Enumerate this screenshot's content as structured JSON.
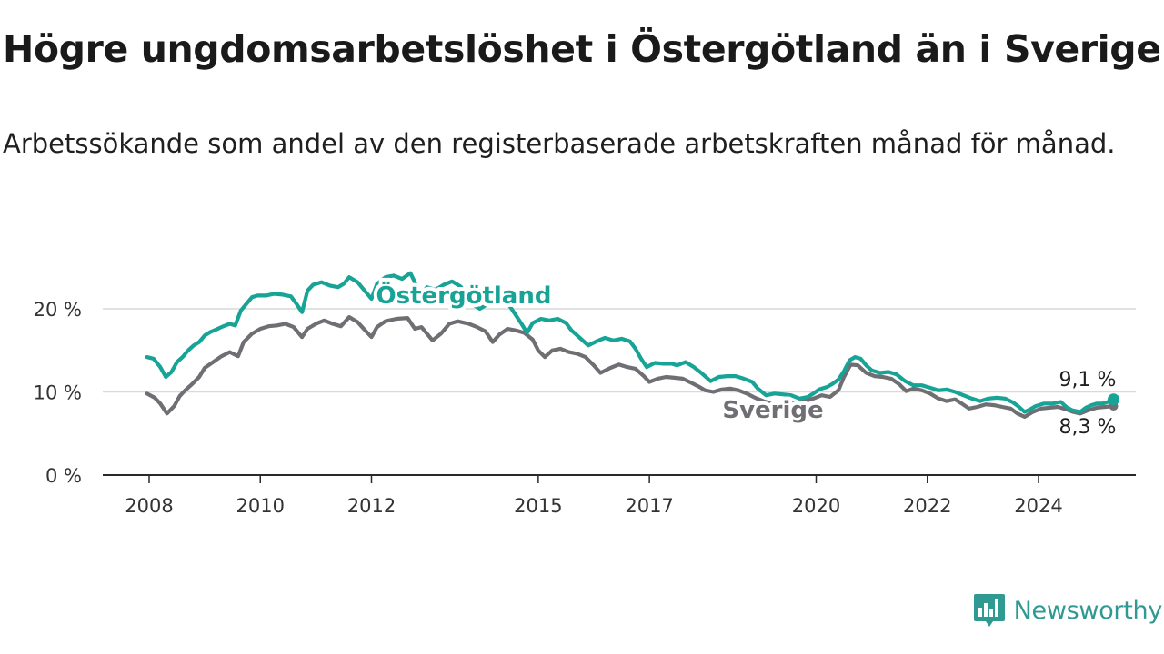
{
  "title": "Högre ungdomsarbetslöshet i Östergötland än i Sverige",
  "subtitle": "Arbetssökande som andel av den registerbaserade arbetskraften månad för månad.",
  "brand": "Newsworthy",
  "colors": {
    "ostergotland": "#17a396",
    "sverige": "#6f6e73",
    "grid": "#d9d9d9",
    "axis": "#2a2a2a",
    "brand": "#2f9a92"
  },
  "chart_data": {
    "type": "line",
    "ylim": [
      0,
      25
    ],
    "yticks": [
      {
        "value": 0,
        "label": "0 %"
      },
      {
        "value": 10,
        "label": "10 %"
      },
      {
        "value": 20,
        "label": "20 %"
      }
    ],
    "xlim": [
      2007.8,
      2026.5
    ],
    "xticks": [
      {
        "value": 2008,
        "label": "2008"
      },
      {
        "value": 2010,
        "label": "2010"
      },
      {
        "value": 2012,
        "label": "2012"
      },
      {
        "value": 2015,
        "label": "2015"
      },
      {
        "value": 2017,
        "label": "2017"
      },
      {
        "value": 2020,
        "label": "2020"
      },
      {
        "value": 2022,
        "label": "2022"
      },
      {
        "value": 2024,
        "label": "2024"
      }
    ],
    "grid": true,
    "series": [
      {
        "name": "Östergötland",
        "color": "#17a396",
        "end_label": "9,1 %",
        "points": [
          [
            2007.96,
            14.2
          ],
          [
            2008.08,
            14.0
          ],
          [
            2008.2,
            13.0
          ],
          [
            2008.3,
            11.8
          ],
          [
            2008.4,
            12.4
          ],
          [
            2008.5,
            13.6
          ],
          [
            2008.6,
            14.2
          ],
          [
            2008.7,
            15.0
          ],
          [
            2008.8,
            15.6
          ],
          [
            2008.9,
            16.0
          ],
          [
            2009.0,
            16.8
          ],
          [
            2009.1,
            17.2
          ],
          [
            2009.2,
            17.5
          ],
          [
            2009.3,
            17.8
          ],
          [
            2009.45,
            18.2
          ],
          [
            2009.55,
            18.0
          ],
          [
            2009.65,
            19.8
          ],
          [
            2009.75,
            20.6
          ],
          [
            2009.85,
            21.4
          ],
          [
            2009.95,
            21.6
          ],
          [
            2010.1,
            21.6
          ],
          [
            2010.25,
            21.8
          ],
          [
            2010.4,
            21.7
          ],
          [
            2010.55,
            21.5
          ],
          [
            2010.65,
            20.6
          ],
          [
            2010.75,
            19.6
          ],
          [
            2010.85,
            22.2
          ],
          [
            2010.95,
            22.9
          ],
          [
            2011.1,
            23.2
          ],
          [
            2011.25,
            22.8
          ],
          [
            2011.4,
            22.6
          ],
          [
            2011.5,
            23.0
          ],
          [
            2011.6,
            23.8
          ],
          [
            2011.75,
            23.2
          ],
          [
            2011.9,
            22.0
          ],
          [
            2012.0,
            21.2
          ],
          [
            2012.1,
            23.0
          ],
          [
            2012.25,
            23.8
          ],
          [
            2012.4,
            24.0
          ],
          [
            2012.55,
            23.6
          ],
          [
            2012.7,
            24.3
          ],
          [
            2012.78,
            23.2
          ],
          [
            2012.88,
            21.6
          ],
          [
            2013.0,
            22.6
          ],
          [
            2013.15,
            22.3
          ],
          [
            2013.3,
            22.9
          ],
          [
            2013.45,
            23.3
          ],
          [
            2013.6,
            22.7
          ],
          [
            2013.75,
            21.5
          ],
          [
            2013.85,
            20.4
          ],
          [
            2013.95,
            20.0
          ],
          [
            2014.1,
            20.6
          ],
          [
            2014.25,
            21.3
          ],
          [
            2014.4,
            21.0
          ],
          [
            2014.5,
            20.2
          ],
          [
            2014.6,
            19.2
          ],
          [
            2014.7,
            18.2
          ],
          [
            2014.8,
            17.1
          ],
          [
            2014.9,
            18.3
          ],
          [
            2015.05,
            18.8
          ],
          [
            2015.2,
            18.6
          ],
          [
            2015.35,
            18.8
          ],
          [
            2015.5,
            18.3
          ],
          [
            2015.6,
            17.4
          ],
          [
            2015.75,
            16.5
          ],
          [
            2015.9,
            15.6
          ],
          [
            2016.05,
            16.1
          ],
          [
            2016.2,
            16.5
          ],
          [
            2016.35,
            16.2
          ],
          [
            2016.5,
            16.4
          ],
          [
            2016.65,
            16.1
          ],
          [
            2016.75,
            15.2
          ],
          [
            2016.85,
            14.0
          ],
          [
            2016.95,
            13.0
          ],
          [
            2017.1,
            13.5
          ],
          [
            2017.25,
            13.4
          ],
          [
            2017.4,
            13.4
          ],
          [
            2017.5,
            13.2
          ],
          [
            2017.65,
            13.6
          ],
          [
            2017.8,
            13.0
          ],
          [
            2017.95,
            12.2
          ],
          [
            2018.1,
            11.3
          ],
          [
            2018.25,
            11.8
          ],
          [
            2018.4,
            11.9
          ],
          [
            2018.55,
            11.9
          ],
          [
            2018.7,
            11.6
          ],
          [
            2018.85,
            11.2
          ],
          [
            2018.95,
            10.4
          ],
          [
            2019.1,
            9.6
          ],
          [
            2019.25,
            9.8
          ],
          [
            2019.4,
            9.7
          ],
          [
            2019.55,
            9.6
          ],
          [
            2019.7,
            9.2
          ],
          [
            2019.85,
            9.4
          ],
          [
            2019.95,
            9.8
          ],
          [
            2020.05,
            10.3
          ],
          [
            2020.2,
            10.6
          ],
          [
            2020.3,
            11.0
          ],
          [
            2020.4,
            11.5
          ],
          [
            2020.5,
            12.5
          ],
          [
            2020.6,
            13.8
          ],
          [
            2020.7,
            14.2
          ],
          [
            2020.8,
            14.0
          ],
          [
            2020.9,
            13.2
          ],
          [
            2021.0,
            12.6
          ],
          [
            2021.15,
            12.3
          ],
          [
            2021.3,
            12.4
          ],
          [
            2021.45,
            12.1
          ],
          [
            2021.6,
            11.3
          ],
          [
            2021.75,
            10.8
          ],
          [
            2021.9,
            10.8
          ],
          [
            2022.05,
            10.5
          ],
          [
            2022.2,
            10.2
          ],
          [
            2022.35,
            10.3
          ],
          [
            2022.5,
            10.0
          ],
          [
            2022.65,
            9.6
          ],
          [
            2022.8,
            9.2
          ],
          [
            2022.95,
            8.9
          ],
          [
            2023.1,
            9.2
          ],
          [
            2023.25,
            9.3
          ],
          [
            2023.4,
            9.2
          ],
          [
            2023.55,
            8.7
          ],
          [
            2023.65,
            8.2
          ],
          [
            2023.75,
            7.6
          ],
          [
            2023.85,
            7.9
          ],
          [
            2023.95,
            8.3
          ],
          [
            2024.1,
            8.6
          ],
          [
            2024.25,
            8.6
          ],
          [
            2024.4,
            8.8
          ],
          [
            2024.5,
            8.2
          ],
          [
            2024.6,
            7.8
          ],
          [
            2024.75,
            7.6
          ],
          [
            2024.85,
            8.1
          ],
          [
            2024.95,
            8.4
          ],
          [
            2025.05,
            8.6
          ],
          [
            2025.15,
            8.6
          ],
          [
            2025.25,
            8.8
          ],
          [
            2025.35,
            9.1
          ]
        ]
      },
      {
        "name": "Sverige",
        "color": "#6f6e73",
        "end_label": "8,3 %",
        "points": [
          [
            2007.96,
            9.8
          ],
          [
            2008.1,
            9.3
          ],
          [
            2008.2,
            8.6
          ],
          [
            2008.32,
            7.4
          ],
          [
            2008.45,
            8.3
          ],
          [
            2008.55,
            9.5
          ],
          [
            2008.65,
            10.2
          ],
          [
            2008.78,
            11.0
          ],
          [
            2008.9,
            11.8
          ],
          [
            2009.0,
            12.9
          ],
          [
            2009.15,
            13.6
          ],
          [
            2009.3,
            14.3
          ],
          [
            2009.45,
            14.8
          ],
          [
            2009.6,
            14.3
          ],
          [
            2009.7,
            16.0
          ],
          [
            2009.85,
            17.0
          ],
          [
            2010.0,
            17.6
          ],
          [
            2010.15,
            17.9
          ],
          [
            2010.3,
            18.0
          ],
          [
            2010.45,
            18.2
          ],
          [
            2010.6,
            17.8
          ],
          [
            2010.75,
            16.6
          ],
          [
            2010.85,
            17.6
          ],
          [
            2011.0,
            18.2
          ],
          [
            2011.15,
            18.6
          ],
          [
            2011.3,
            18.2
          ],
          [
            2011.45,
            17.9
          ],
          [
            2011.6,
            19.0
          ],
          [
            2011.75,
            18.4
          ],
          [
            2011.9,
            17.3
          ],
          [
            2012.0,
            16.6
          ],
          [
            2012.1,
            17.8
          ],
          [
            2012.25,
            18.5
          ],
          [
            2012.45,
            18.8
          ],
          [
            2012.65,
            18.9
          ],
          [
            2012.78,
            17.6
          ],
          [
            2012.9,
            17.8
          ],
          [
            2013.1,
            16.2
          ],
          [
            2013.25,
            17.0
          ],
          [
            2013.4,
            18.2
          ],
          [
            2013.55,
            18.5
          ],
          [
            2013.75,
            18.2
          ],
          [
            2013.9,
            17.8
          ],
          [
            2014.05,
            17.3
          ],
          [
            2014.18,
            16.0
          ],
          [
            2014.3,
            16.9
          ],
          [
            2014.45,
            17.6
          ],
          [
            2014.6,
            17.4
          ],
          [
            2014.75,
            17.1
          ],
          [
            2014.9,
            16.3
          ],
          [
            2015.0,
            15.0
          ],
          [
            2015.12,
            14.2
          ],
          [
            2015.25,
            15.0
          ],
          [
            2015.4,
            15.2
          ],
          [
            2015.55,
            14.8
          ],
          [
            2015.7,
            14.6
          ],
          [
            2015.85,
            14.2
          ],
          [
            2016.0,
            13.2
          ],
          [
            2016.12,
            12.3
          ],
          [
            2016.3,
            12.9
          ],
          [
            2016.45,
            13.3
          ],
          [
            2016.6,
            13.0
          ],
          [
            2016.75,
            12.8
          ],
          [
            2016.9,
            11.9
          ],
          [
            2017.0,
            11.2
          ],
          [
            2017.15,
            11.6
          ],
          [
            2017.3,
            11.8
          ],
          [
            2017.45,
            11.7
          ],
          [
            2017.6,
            11.6
          ],
          [
            2017.75,
            11.1
          ],
          [
            2017.9,
            10.6
          ],
          [
            2018.0,
            10.2
          ],
          [
            2018.15,
            10.0
          ],
          [
            2018.3,
            10.3
          ],
          [
            2018.45,
            10.4
          ],
          [
            2018.6,
            10.2
          ],
          [
            2018.75,
            9.8
          ],
          [
            2018.9,
            9.3
          ],
          [
            2019.05,
            8.9
          ],
          [
            2019.2,
            8.6
          ],
          [
            2019.35,
            8.4
          ],
          [
            2019.5,
            8.5
          ],
          [
            2019.65,
            8.7
          ],
          [
            2019.8,
            8.9
          ],
          [
            2019.95,
            9.2
          ],
          [
            2020.1,
            9.6
          ],
          [
            2020.25,
            9.4
          ],
          [
            2020.4,
            10.2
          ],
          [
            2020.5,
            11.8
          ],
          [
            2020.62,
            13.3
          ],
          [
            2020.75,
            13.2
          ],
          [
            2020.9,
            12.3
          ],
          [
            2021.05,
            11.9
          ],
          [
            2021.2,
            11.8
          ],
          [
            2021.35,
            11.6
          ],
          [
            2021.5,
            10.9
          ],
          [
            2021.62,
            10.1
          ],
          [
            2021.75,
            10.4
          ],
          [
            2021.9,
            10.2
          ],
          [
            2022.05,
            9.8
          ],
          [
            2022.2,
            9.2
          ],
          [
            2022.35,
            8.9
          ],
          [
            2022.5,
            9.1
          ],
          [
            2022.62,
            8.6
          ],
          [
            2022.75,
            8.0
          ],
          [
            2022.9,
            8.2
          ],
          [
            2023.05,
            8.5
          ],
          [
            2023.2,
            8.4
          ],
          [
            2023.35,
            8.2
          ],
          [
            2023.5,
            8.0
          ],
          [
            2023.62,
            7.4
          ],
          [
            2023.75,
            7.0
          ],
          [
            2023.9,
            7.6
          ],
          [
            2024.05,
            8.0
          ],
          [
            2024.2,
            8.1
          ],
          [
            2024.35,
            8.2
          ],
          [
            2024.5,
            7.9
          ],
          [
            2024.62,
            7.6
          ],
          [
            2024.75,
            7.4
          ],
          [
            2024.9,
            7.8
          ],
          [
            2025.05,
            8.1
          ],
          [
            2025.2,
            8.2
          ],
          [
            2025.35,
            8.3
          ]
        ]
      }
    ]
  }
}
